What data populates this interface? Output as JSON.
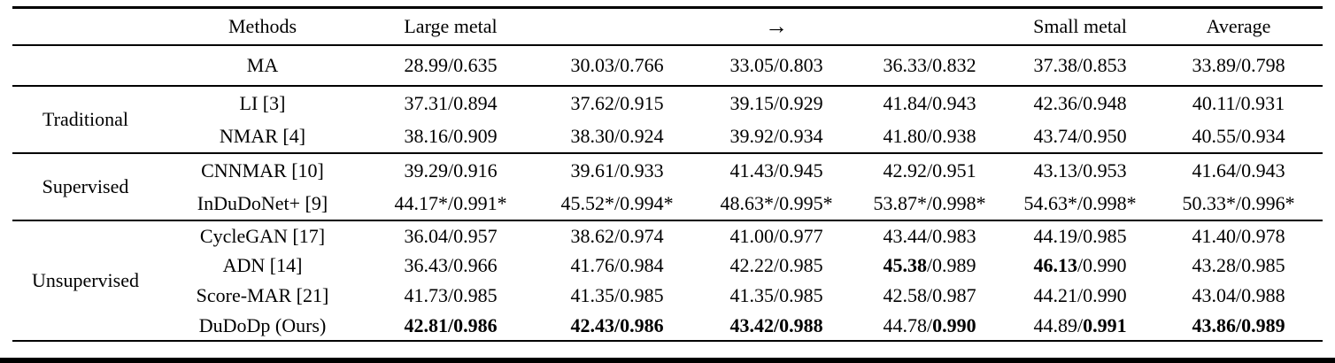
{
  "table": {
    "header": {
      "methods_label": "Methods",
      "cols": [
        "Large metal",
        "",
        "→",
        "",
        "Small metal",
        "Average"
      ]
    },
    "groups": [
      {
        "label": "",
        "rows": [
          {
            "method": "MA",
            "cells": [
              {
                "p1": "28.99/",
                "p2": "0.635"
              },
              {
                "p1": "30.03/",
                "p2": "0.766"
              },
              {
                "p1": "33.05/",
                "p2": "0.803"
              },
              {
                "p1": "36.33/",
                "p2": "0.832"
              },
              {
                "p1": "37.38/",
                "p2": "0.853"
              },
              {
                "p1": "33.89/",
                "p2": "0.798"
              }
            ]
          }
        ]
      },
      {
        "label": "Traditional",
        "rows": [
          {
            "method": "LI [3]",
            "cells": [
              {
                "p1": "37.31/",
                "p2": "0.894"
              },
              {
                "p1": "37.62/",
                "p2": "0.915"
              },
              {
                "p1": "39.15/",
                "p2": "0.929"
              },
              {
                "p1": "41.84/",
                "p2": "0.943"
              },
              {
                "p1": "42.36/",
                "p2": "0.948"
              },
              {
                "p1": "40.11/",
                "p2": "0.931"
              }
            ]
          },
          {
            "method": "NMAR [4]",
            "cells": [
              {
                "p1": "38.16/",
                "p2": "0.909"
              },
              {
                "p1": "38.30/",
                "p2": "0.924"
              },
              {
                "p1": "39.92/",
                "p2": "0.934"
              },
              {
                "p1": "41.80/",
                "p2": "0.938"
              },
              {
                "p1": "43.74/",
                "p2": "0.950"
              },
              {
                "p1": "40.55/",
                "p2": "0.934"
              }
            ]
          }
        ]
      },
      {
        "label": "Supervised",
        "rows": [
          {
            "method": "CNNMAR [10]",
            "cells": [
              {
                "p1": "39.29/",
                "p2": "0.916"
              },
              {
                "p1": "39.61/",
                "p2": "0.933"
              },
              {
                "p1": "41.43/",
                "p2": "0.945"
              },
              {
                "p1": "42.92/",
                "p2": "0.951"
              },
              {
                "p1": "43.13/",
                "p2": "0.953"
              },
              {
                "p1": "41.64/",
                "p2": "0.943"
              }
            ]
          },
          {
            "method": "InDuDoNet+ [9]",
            "cells": [
              {
                "p1": "44.17*/",
                "p2": "0.991*"
              },
              {
                "p1": "45.52*/",
                "p2": "0.994*"
              },
              {
                "p1": "48.63*/",
                "p2": "0.995*"
              },
              {
                "p1": "53.87*/",
                "p2": "0.998*"
              },
              {
                "p1": "54.63*/",
                "p2": "0.998*"
              },
              {
                "p1": "50.33*/",
                "p2": "0.996*"
              }
            ]
          }
        ]
      },
      {
        "label": "Unsupervised",
        "rows": [
          {
            "method": "CycleGAN [17]",
            "cells": [
              {
                "p1": "36.04/",
                "p2": "0.957"
              },
              {
                "p1": "38.62/",
                "p2": "0.974"
              },
              {
                "p1": "41.00/",
                "p2": "0.977"
              },
              {
                "p1": "43.44/",
                "p2": "0.983"
              },
              {
                "p1": "44.19/",
                "p2": "0.985"
              },
              {
                "p1": "41.40/",
                "p2": "0.978"
              }
            ]
          },
          {
            "method": "ADN [14]",
            "cells": [
              {
                "p1": "36.43/",
                "p2": "0.966"
              },
              {
                "p1": "41.76/",
                "p2": "0.984"
              },
              {
                "p1": "42.22/",
                "p2": "0.985"
              },
              {
                "p1": "45.38",
                "b1": true,
                "p2": "/0.989"
              },
              {
                "p1": "46.13",
                "b1": true,
                "p2": "/0.990"
              },
              {
                "p1": "43.28/",
                "p2": "0.985"
              }
            ]
          },
          {
            "method": "Score-MAR [21]",
            "cells": [
              {
                "p1": "41.73/",
                "p2": "0.985"
              },
              {
                "p1": "41.35/",
                "p2": "0.985"
              },
              {
                "p1": "41.35/",
                "p2": "0.985"
              },
              {
                "p1": "42.58/",
                "p2": "0.987"
              },
              {
                "p1": "44.21/",
                "p2": "0.990"
              },
              {
                "p1": "43.04/",
                "p2": "0.988"
              }
            ]
          },
          {
            "method": "DuDoDp (Ours)",
            "cells": [
              {
                "p1": "42.81/",
                "b1": true,
                "p2": "0.986",
                "b2": true
              },
              {
                "p1": "42.43/",
                "b1": true,
                "p2": "0.986",
                "b2": true
              },
              {
                "p1": "43.42/",
                "b1": true,
                "p2": "0.988",
                "b2": true
              },
              {
                "p1": "44.78/",
                "p2": "0.990",
                "b2": true
              },
              {
                "p1": "44.89/",
                "p2": "0.991",
                "b2": true
              },
              {
                "p1": "43.86/",
                "b1": true,
                "p2": "0.989",
                "b2": true
              }
            ]
          }
        ]
      }
    ]
  }
}
